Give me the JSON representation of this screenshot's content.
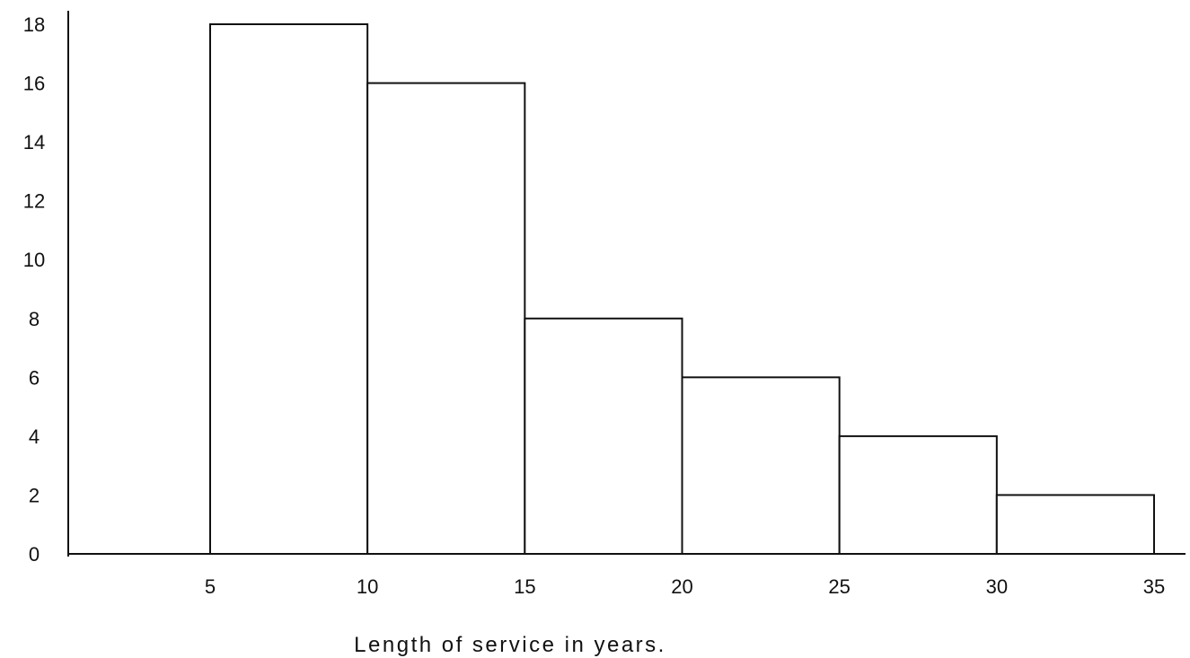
{
  "chart_data": {
    "type": "bar",
    "title": "",
    "xlabel": "Length of service in years.",
    "ylabel": "",
    "bins": [
      {
        "start": 5,
        "end": 10,
        "value": 18
      },
      {
        "start": 10,
        "end": 15,
        "value": 16
      },
      {
        "start": 15,
        "end": 20,
        "value": 8
      },
      {
        "start": 20,
        "end": 25,
        "value": 6
      },
      {
        "start": 25,
        "end": 30,
        "value": 4
      },
      {
        "start": 30,
        "end": 35,
        "value": 2
      }
    ],
    "xlim": [
      0,
      35
    ],
    "ylim": [
      0,
      18
    ],
    "xticks": [
      "5",
      "10",
      "15",
      "20",
      "25",
      "30",
      "35"
    ],
    "yticks": [
      "0",
      "2",
      "4",
      "6",
      "8",
      "10",
      "12",
      "14",
      "16",
      "18"
    ],
    "grid": false,
    "legend": "none",
    "colors": {
      "bar_fill": "#ffffff",
      "bar_stroke": "#111111",
      "axis": "#111111"
    }
  }
}
